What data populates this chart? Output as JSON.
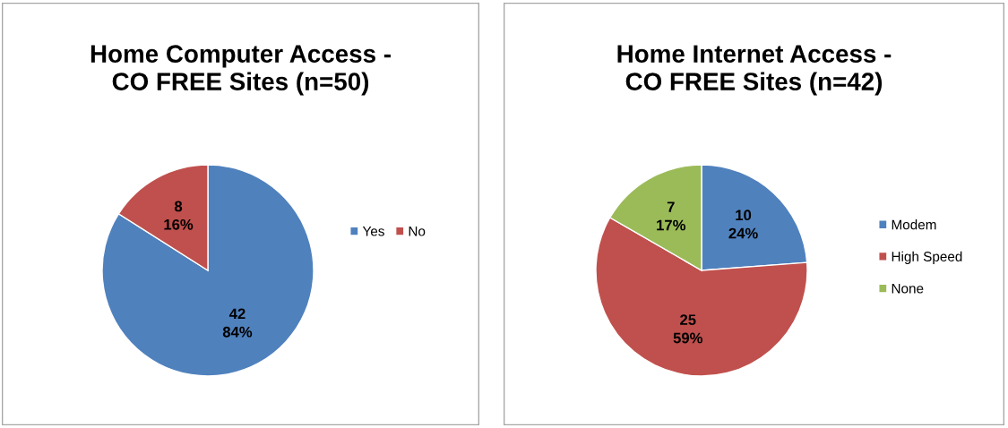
{
  "chart_data": [
    {
      "type": "pie",
      "title": "Home Computer Access -\nCO FREE Sites (n=50)",
      "categories": [
        "Yes",
        "No"
      ],
      "values": [
        42,
        8
      ],
      "colors": [
        "#4f81bd",
        "#c0504d"
      ],
      "value_labels": [
        "42\n84%",
        "8\n16%"
      ],
      "legend": "right"
    },
    {
      "type": "pie",
      "title": "Home Internet Access -\nCO FREE Sites (n=42)",
      "categories": [
        "Modem",
        "High Speed",
        "None"
      ],
      "values": [
        10,
        25,
        7
      ],
      "colors": [
        "#4f81bd",
        "#c0504d",
        "#9bbb59"
      ],
      "value_labels": [
        "10\n24%",
        "25\n59%",
        "7\n17%"
      ],
      "legend": "right"
    }
  ]
}
